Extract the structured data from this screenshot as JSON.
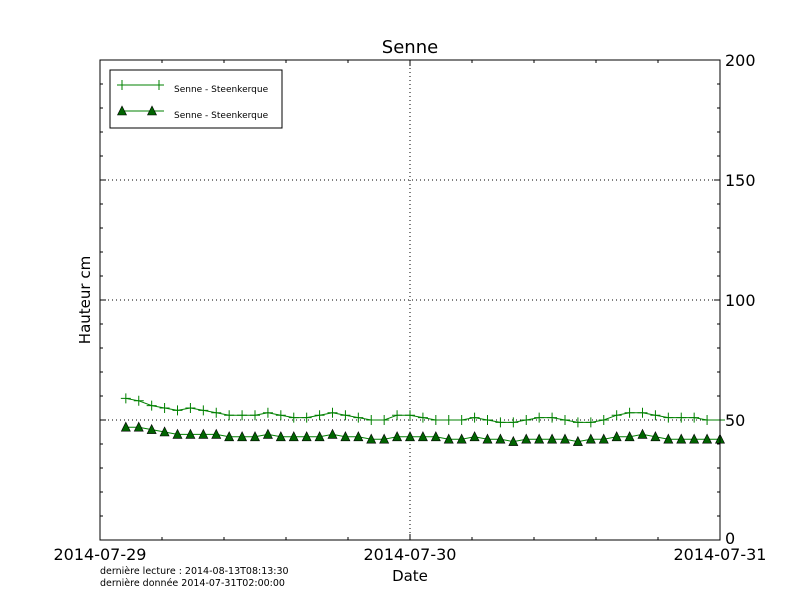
{
  "chart_data": {
    "type": "line",
    "title": "Senne",
    "xlabel": "Date",
    "ylabel": "Hauteur cm",
    "xlim": [
      "2014-07-29T00:00",
      "2014-07-31T00:00"
    ],
    "ylim": [
      0,
      200
    ],
    "x_tick_labels": [
      "2014-07-29",
      "2014-07-30",
      "2014-07-31"
    ],
    "y_tick_labels": [
      "0",
      "50",
      "100",
      "150",
      "200"
    ],
    "y_axis_side": "right",
    "grid": true,
    "legend_position": "top-left",
    "x": [
      "2014-07-29T02:00",
      "2014-07-29T03:00",
      "2014-07-29T04:00",
      "2014-07-29T05:00",
      "2014-07-29T06:00",
      "2014-07-29T07:00",
      "2014-07-29T08:00",
      "2014-07-29T09:00",
      "2014-07-29T10:00",
      "2014-07-29T11:00",
      "2014-07-29T12:00",
      "2014-07-29T13:00",
      "2014-07-29T14:00",
      "2014-07-29T15:00",
      "2014-07-29T16:00",
      "2014-07-29T17:00",
      "2014-07-29T18:00",
      "2014-07-29T19:00",
      "2014-07-29T20:00",
      "2014-07-29T21:00",
      "2014-07-29T22:00",
      "2014-07-29T23:00",
      "2014-07-30T00:00",
      "2014-07-30T01:00",
      "2014-07-30T02:00",
      "2014-07-30T03:00",
      "2014-07-30T04:00",
      "2014-07-30T05:00",
      "2014-07-30T06:00",
      "2014-07-30T07:00",
      "2014-07-30T08:00",
      "2014-07-30T09:00",
      "2014-07-30T10:00",
      "2014-07-30T11:00",
      "2014-07-30T12:00",
      "2014-07-30T13:00",
      "2014-07-30T14:00",
      "2014-07-30T15:00",
      "2014-07-30T16:00",
      "2014-07-30T17:00",
      "2014-07-30T18:00",
      "2014-07-30T19:00",
      "2014-07-30T20:00",
      "2014-07-30T21:00",
      "2014-07-30T22:00",
      "2014-07-30T23:00",
      "2014-07-31T00:00"
    ],
    "series": [
      {
        "name": "Senne - Steenkerque",
        "marker": "plus",
        "color": "#008000",
        "values": [
          59,
          58,
          56,
          55,
          54,
          55,
          54,
          53,
          52,
          52,
          52,
          53,
          52,
          51,
          51,
          52,
          53,
          52,
          51,
          50,
          50,
          52,
          52,
          51,
          50,
          50,
          50,
          51,
          50,
          49,
          49,
          50,
          51,
          51,
          50,
          49,
          49,
          50,
          52,
          53,
          53,
          52,
          51,
          51,
          51,
          50,
          50
        ]
      },
      {
        "name": "Senne - Steenkerque",
        "marker": "triangle",
        "color": "#006400",
        "values": [
          47,
          47,
          46,
          45,
          44,
          44,
          44,
          44,
          43,
          43,
          43,
          44,
          43,
          43,
          43,
          43,
          44,
          43,
          43,
          42,
          42,
          43,
          43,
          43,
          43,
          42,
          42,
          43,
          42,
          42,
          41,
          42,
          42,
          42,
          42,
          41,
          42,
          42,
          43,
          43,
          44,
          43,
          42,
          42,
          42,
          42,
          42
        ]
      }
    ]
  },
  "footer": {
    "last_read": "dernière lecture : 2014-08-13T08:13:30",
    "last_data": "dernière donnée  2014-07-31T02:00:00"
  }
}
